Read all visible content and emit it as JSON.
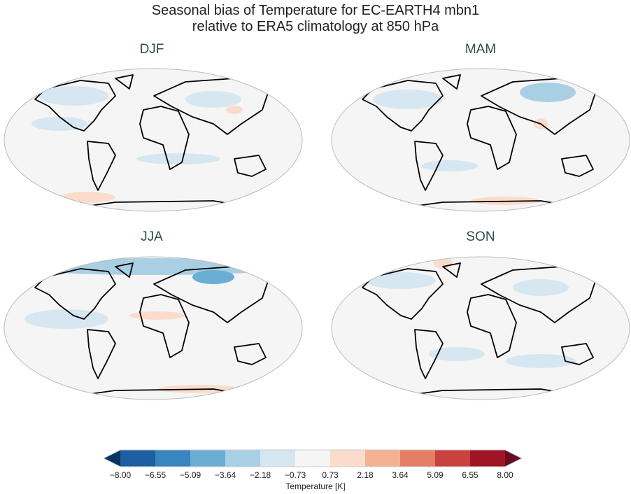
{
  "title_line1": "Seasonal bias of Temperature for EC-EARTH4 mbn1",
  "title_line2": "relative to ERA5 climatology at 850 hPa",
  "panels": [
    {
      "label": "DJF"
    },
    {
      "label": "MAM"
    },
    {
      "label": "JJA"
    },
    {
      "label": "SON"
    }
  ],
  "colorbar": {
    "label": "Temperature [K]",
    "ticks": [
      "−8.00",
      "−6.55",
      "−5.09",
      "−3.64",
      "−2.18",
      "−0.73",
      "0.73",
      "2.18",
      "3.64",
      "5.09",
      "6.55",
      "8.00"
    ],
    "colors": [
      "#1d5fa2",
      "#3885bf",
      "#6baed3",
      "#a9cfe5",
      "#d7e7f1",
      "#f5f5f5",
      "#fbdccb",
      "#f5b293",
      "#e57d64",
      "#c84240",
      "#a01526"
    ],
    "extend_low": "#0a3263",
    "extend_high": "#680b20"
  }
}
